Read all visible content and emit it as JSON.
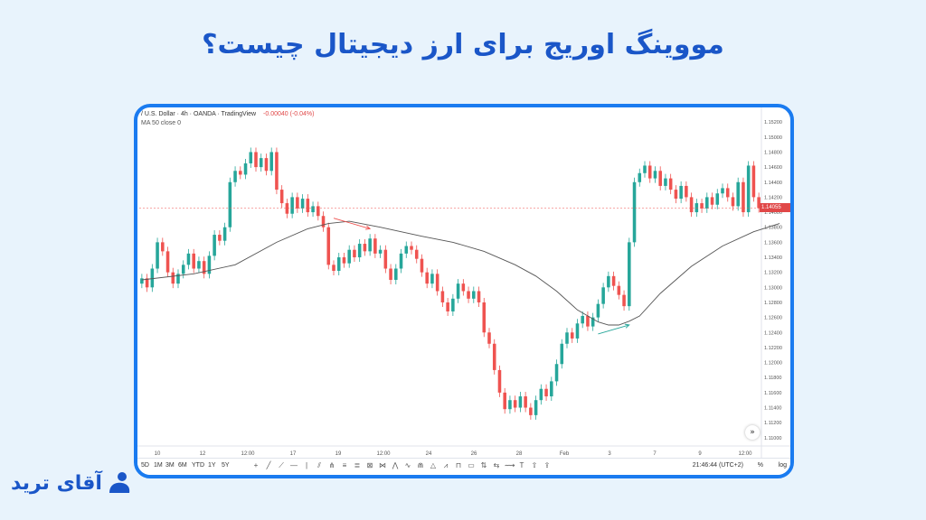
{
  "title": "مووینگ اوریج برای ارز دیجیتال چیست؟",
  "brand": {
    "name": "آقای ترید",
    "color": "#1a56c8",
    "icon": "person-logo-icon"
  },
  "colors": {
    "frame": "#1a7bf0",
    "up": "#26a69a",
    "down": "#ef5350",
    "ma": "#555555"
  },
  "chart_header": {
    "symbol_text": "/ U.S. Dollar · 4h · OANDA · TradingView",
    "change_text": "-0.00040 (-0.04%)",
    "indicator_text": "MA 50 close 0"
  },
  "chart_data": {
    "type": "candlestick",
    "x_tick_labels": [
      "10",
      "12",
      "12:00",
      "17",
      "19",
      "12:00",
      "24",
      "26",
      "28",
      "Feb",
      "3",
      "7",
      "9",
      "12:00"
    ],
    "y_tick_labels": [
      "1.15200",
      "1.15000",
      "1.14800",
      "1.14600",
      "1.14400",
      "1.14200",
      "1.14000",
      "1.13800",
      "1.13600",
      "1.13400",
      "1.13200",
      "1.13000",
      "1.12800",
      "1.12600",
      "1.12400",
      "1.12200",
      "1.12000",
      "1.11800",
      "1.11600",
      "1.11400",
      "1.11200",
      "1.11000"
    ],
    "ylim": [
      1.1095,
      1.1525
    ],
    "last_price_label": "1.14055",
    "last_price": 1.14055,
    "candles": [
      [
        1.1305,
        1.1312
      ],
      [
        1.1312,
        1.13
      ],
      [
        1.13,
        1.1325
      ],
      [
        1.1325,
        1.136
      ],
      [
        1.136,
        1.1348
      ],
      [
        1.1348,
        1.132
      ],
      [
        1.132,
        1.1305
      ],
      [
        1.1305,
        1.1318
      ],
      [
        1.1318,
        1.133
      ],
      [
        1.133,
        1.1345
      ],
      [
        1.1345,
        1.1325
      ],
      [
        1.1325,
        1.1335
      ],
      [
        1.1335,
        1.1318
      ],
      [
        1.1318,
        1.1342
      ],
      [
        1.1342,
        1.137
      ],
      [
        1.137,
        1.1362
      ],
      [
        1.1362,
        1.138
      ],
      [
        1.138,
        1.144
      ],
      [
        1.144,
        1.1455
      ],
      [
        1.1455,
        1.145
      ],
      [
        1.145,
        1.1465
      ],
      [
        1.1465,
        1.148
      ],
      [
        1.148,
        1.146
      ],
      [
        1.146,
        1.1472
      ],
      [
        1.1472,
        1.1455
      ],
      [
        1.1455,
        1.148
      ],
      [
        1.148,
        1.143
      ],
      [
        1.143,
        1.1412
      ],
      [
        1.1412,
        1.1398
      ],
      [
        1.1398,
        1.142
      ],
      [
        1.142,
        1.1405
      ],
      [
        1.1405,
        1.1418
      ],
      [
        1.1418,
        1.14
      ],
      [
        1.14,
        1.1408
      ],
      [
        1.1408,
        1.1395
      ],
      [
        1.1395,
        1.138
      ],
      [
        1.138,
        1.133
      ],
      [
        1.133,
        1.1322
      ],
      [
        1.1322,
        1.134
      ],
      [
        1.134,
        1.1332
      ],
      [
        1.1332,
        1.135
      ],
      [
        1.135,
        1.134
      ],
      [
        1.134,
        1.1358
      ],
      [
        1.1358,
        1.1348
      ],
      [
        1.1348,
        1.1365
      ],
      [
        1.1365,
        1.1345
      ],
      [
        1.1345,
        1.135
      ],
      [
        1.135,
        1.1325
      ],
      [
        1.1325,
        1.131
      ],
      [
        1.131,
        1.1325
      ],
      [
        1.1325,
        1.1345
      ],
      [
        1.1345,
        1.1355
      ],
      [
        1.1355,
        1.135
      ],
      [
        1.135,
        1.1338
      ],
      [
        1.1338,
        1.132
      ],
      [
        1.132,
        1.1305
      ],
      [
        1.1305,
        1.1318
      ],
      [
        1.1318,
        1.1295
      ],
      [
        1.1295,
        1.128
      ],
      [
        1.128,
        1.1268
      ],
      [
        1.1268,
        1.1285
      ],
      [
        1.1285,
        1.1305
      ],
      [
        1.1305,
        1.1295
      ],
      [
        1.1295,
        1.1285
      ],
      [
        1.1285,
        1.1295
      ],
      [
        1.1295,
        1.128
      ],
      [
        1.128,
        1.124
      ],
      [
        1.124,
        1.1225
      ],
      [
        1.1225,
        1.119
      ],
      [
        1.119,
        1.116
      ],
      [
        1.116,
        1.1138
      ],
      [
        1.1138,
        1.115
      ],
      [
        1.115,
        1.114
      ],
      [
        1.114,
        1.1155
      ],
      [
        1.1155,
        1.114
      ],
      [
        1.114,
        1.113
      ],
      [
        1.113,
        1.115
      ],
      [
        1.115,
        1.1165
      ],
      [
        1.1165,
        1.1155
      ],
      [
        1.1155,
        1.1175
      ],
      [
        1.1175,
        1.1198
      ],
      [
        1.1198,
        1.1225
      ],
      [
        1.1225,
        1.124
      ],
      [
        1.124,
        1.1232
      ],
      [
        1.1232,
        1.1252
      ],
      [
        1.1252,
        1.1262
      ],
      [
        1.1262,
        1.1248
      ],
      [
        1.1248,
        1.126
      ],
      [
        1.126,
        1.1278
      ],
      [
        1.1278,
        1.13
      ],
      [
        1.13,
        1.1315
      ],
      [
        1.1315,
        1.1302
      ],
      [
        1.1302,
        1.129
      ],
      [
        1.129,
        1.1275
      ],
      [
        1.1275,
        1.136
      ],
      [
        1.136,
        1.144
      ],
      [
        1.144,
        1.1452
      ],
      [
        1.1452,
        1.1462
      ],
      [
        1.1462,
        1.1445
      ],
      [
        1.1445,
        1.1455
      ],
      [
        1.1455,
        1.1435
      ],
      [
        1.1435,
        1.1445
      ],
      [
        1.1445,
        1.143
      ],
      [
        1.143,
        1.1418
      ],
      [
        1.1418,
        1.1435
      ],
      [
        1.1435,
        1.142
      ],
      [
        1.142,
        1.14
      ],
      [
        1.14,
        1.1412
      ],
      [
        1.1412,
        1.1405
      ],
      [
        1.1405,
        1.142
      ],
      [
        1.142,
        1.141
      ],
      [
        1.141,
        1.1425
      ],
      [
        1.1425,
        1.1432
      ],
      [
        1.1432,
        1.142
      ],
      [
        1.142,
        1.1408
      ],
      [
        1.1408,
        1.144
      ],
      [
        1.144,
        1.14
      ],
      [
        1.14,
        1.1462
      ],
      [
        1.1462,
        1.142
      ],
      [
        1.142,
        1.14055
      ]
    ],
    "ma_line": [
      [
        0,
        1.131
      ],
      [
        10,
        1.1318
      ],
      [
        18,
        1.133
      ],
      [
        26,
        1.136
      ],
      [
        32,
        1.1378
      ],
      [
        36,
        1.1385
      ],
      [
        40,
        1.1388
      ],
      [
        46,
        1.138
      ],
      [
        54,
        1.1368
      ],
      [
        60,
        1.136
      ],
      [
        66,
        1.1348
      ],
      [
        72,
        1.133
      ],
      [
        76,
        1.1315
      ],
      [
        80,
        1.1295
      ],
      [
        84,
        1.127
      ],
      [
        88,
        1.1254
      ],
      [
        90,
        1.125
      ],
      [
        92,
        1.125
      ],
      [
        94,
        1.1255
      ],
      [
        96,
        1.1262
      ],
      [
        100,
        1.1292
      ],
      [
        106,
        1.1328
      ],
      [
        112,
        1.1355
      ],
      [
        118,
        1.1374
      ],
      [
        123,
        1.1385
      ]
    ],
    "annotations": [
      {
        "type": "arrow",
        "color": "#ef5350",
        "from": [
          37,
          1.1392
        ],
        "to": [
          44,
          1.1378
        ]
      },
      {
        "type": "arrow",
        "color": "#26a69a",
        "from": [
          88,
          1.1238
        ],
        "to": [
          94,
          1.125
        ]
      }
    ]
  },
  "toolbar": {
    "timeframes": [
      "5D",
      "1M",
      "3M",
      "6M",
      "YTD",
      "1Y",
      "5Y"
    ],
    "clock": "21:46:44 (UTC+2)",
    "percent_label": "%",
    "log_label": "log"
  }
}
